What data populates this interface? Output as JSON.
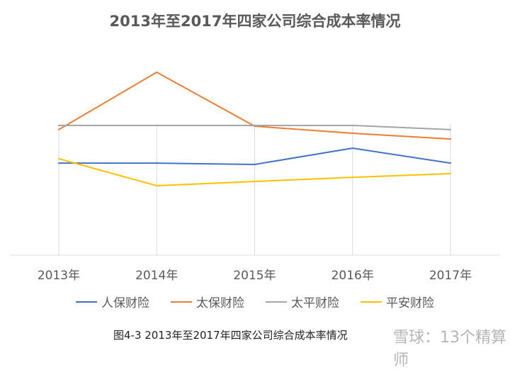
{
  "chart_data": {
    "type": "line",
    "title": "2013年至2017年四家公司综合成本率情况",
    "categories": [
      "2013年",
      "2014年",
      "2015年",
      "2016年",
      "2017年"
    ],
    "ylim": [
      0,
      100
    ],
    "grid": "vertical",
    "legend_position": "bottom",
    "series": [
      {
        "name": "人保财险",
        "color": "#4472c4",
        "values": [
          48.1,
          48.1,
          47.4,
          55.9,
          48.1
        ]
      },
      {
        "name": "太保财险",
        "color": "#ed7d31",
        "values": [
          65.6,
          95.6,
          67.4,
          63.7,
          60.7
        ]
      },
      {
        "name": "太平财险",
        "color": "#a5a5a5",
        "values": [
          67.8,
          67.8,
          67.8,
          67.8,
          65.6
        ]
      },
      {
        "name": "平安财险",
        "color": "#ffc000",
        "values": [
          50.4,
          36.3,
          38.5,
          40.7,
          42.6
        ]
      }
    ]
  },
  "caption": "图4-3 2013年至2017年四家公司综合成本率情况",
  "watermark": "雪球：13个精算师"
}
